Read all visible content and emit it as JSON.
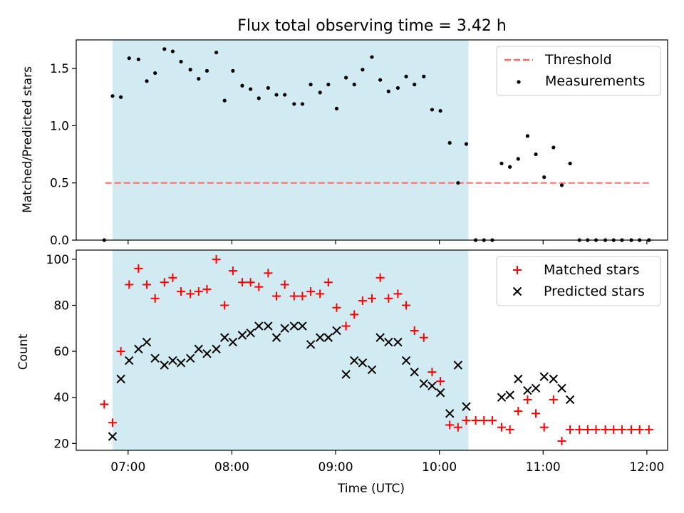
{
  "title": "Flux total observing time = 3.42 h",
  "colors": {
    "shade": "#add8e6",
    "threshold": "#ff6666",
    "matched": "#ff0000",
    "predicted": "#000000",
    "measure": "#000000"
  },
  "chart_data": [
    {
      "type": "scatter",
      "ylabel": "Matched/Predicted stars",
      "ylim": [
        0,
        1.75
      ],
      "yticks": [
        "0.0",
        "0.5",
        "1.0",
        "1.5"
      ],
      "xlim_hours": [
        6.5,
        12.2
      ],
      "shaded_interval_hours": [
        6.85,
        10.28
      ],
      "legend": [
        "Threshold",
        "Measurements"
      ],
      "legend_position": "top-right",
      "threshold": {
        "x": [
          6.78,
          12.02
        ],
        "y": 0.5
      },
      "series": [
        {
          "name": "Measurements",
          "x": [
            6.77,
            6.85,
            6.93,
            7.01,
            7.1,
            7.18,
            7.26,
            7.35,
            7.43,
            7.51,
            7.6,
            7.68,
            7.76,
            7.85,
            7.93,
            8.01,
            8.1,
            8.18,
            8.26,
            8.35,
            8.43,
            8.51,
            8.6,
            8.68,
            8.76,
            8.85,
            8.93,
            9.01,
            9.1,
            9.18,
            9.26,
            9.35,
            9.43,
            9.51,
            9.6,
            9.68,
            9.76,
            9.85,
            9.93,
            10.01,
            10.1,
            10.18,
            10.26,
            10.35,
            10.43,
            10.51,
            10.6,
            10.68,
            10.76,
            10.85,
            10.93,
            11.01,
            11.1,
            11.18,
            11.26,
            11.35,
            11.43,
            11.51,
            11.6,
            11.68,
            11.76,
            11.85,
            11.93,
            12.02
          ],
          "y": [
            0.0,
            1.26,
            1.25,
            1.59,
            1.58,
            1.39,
            1.46,
            1.67,
            1.65,
            1.56,
            1.49,
            1.41,
            1.48,
            1.64,
            1.22,
            1.48,
            1.35,
            1.32,
            1.24,
            1.33,
            1.27,
            1.27,
            1.19,
            1.19,
            1.36,
            1.29,
            1.36,
            1.15,
            1.42,
            1.36,
            1.49,
            1.6,
            1.4,
            1.3,
            1.33,
            1.43,
            1.36,
            1.43,
            1.14,
            1.13,
            0.85,
            0.5,
            0.84,
            0.0,
            0.0,
            0.0,
            0.67,
            0.64,
            0.71,
            0.91,
            0.75,
            0.55,
            0.81,
            0.48,
            0.67,
            0.0,
            0.0,
            0.0,
            0.0,
            0.0,
            0.0,
            0.0,
            0.0,
            0.0
          ]
        }
      ]
    },
    {
      "type": "scatter",
      "xlabel": "Time (UTC)",
      "ylabel": "Count",
      "ylim": [
        17,
        104
      ],
      "yticks": [
        "20",
        "40",
        "60",
        "80",
        "100"
      ],
      "xticks": [
        "07:00",
        "08:00",
        "09:00",
        "10:00",
        "11:00",
        "12:00"
      ],
      "xlim_hours": [
        6.5,
        12.2
      ],
      "shaded_interval_hours": [
        6.85,
        10.28
      ],
      "legend": [
        "Matched stars",
        "Predicted stars"
      ],
      "legend_position": "top-right",
      "series": [
        {
          "name": "Matched stars",
          "x": [
            6.77,
            6.85,
            6.93,
            7.01,
            7.1,
            7.18,
            7.26,
            7.35,
            7.43,
            7.51,
            7.6,
            7.68,
            7.76,
            7.85,
            7.93,
            8.01,
            8.1,
            8.18,
            8.26,
            8.35,
            8.43,
            8.51,
            8.6,
            8.68,
            8.76,
            8.85,
            8.93,
            9.01,
            9.1,
            9.18,
            9.26,
            9.35,
            9.43,
            9.51,
            9.6,
            9.68,
            9.76,
            9.85,
            9.93,
            10.01,
            10.1,
            10.18,
            10.26,
            10.35,
            10.43,
            10.51,
            10.6,
            10.68,
            10.76,
            10.85,
            10.93,
            11.01,
            11.1,
            11.18,
            11.26,
            11.35,
            11.43,
            11.51,
            11.6,
            11.68,
            11.76,
            11.85,
            11.93,
            12.02
          ],
          "y": [
            37,
            29,
            60,
            89,
            96,
            89,
            83,
            90,
            92,
            86,
            85,
            86,
            87,
            100,
            80,
            95,
            90,
            90,
            88,
            94,
            84,
            89,
            84,
            84,
            86,
            85,
            90,
            79,
            71,
            76,
            82,
            83,
            92,
            83,
            85,
            80,
            69,
            66,
            51,
            47,
            28,
            27,
            30,
            30,
            30,
            30,
            27,
            26,
            34,
            39,
            33,
            27,
            39,
            21,
            26,
            26,
            26,
            26,
            26,
            26,
            26,
            26,
            26,
            26
          ]
        },
        {
          "name": "Predicted stars",
          "x": [
            6.85,
            6.93,
            7.01,
            7.1,
            7.18,
            7.26,
            7.35,
            7.43,
            7.51,
            7.6,
            7.68,
            7.76,
            7.85,
            7.93,
            8.01,
            8.1,
            8.18,
            8.26,
            8.35,
            8.43,
            8.51,
            8.6,
            8.68,
            8.76,
            8.85,
            8.93,
            9.01,
            9.1,
            9.18,
            9.26,
            9.35,
            9.43,
            9.51,
            9.6,
            9.68,
            9.76,
            9.85,
            9.93,
            10.01,
            10.1,
            10.18,
            10.26,
            10.6,
            10.68,
            10.76,
            10.85,
            10.93,
            11.01,
            11.1,
            11.18,
            11.26
          ],
          "y": [
            23,
            48,
            56,
            61,
            64,
            57,
            54,
            56,
            55,
            57,
            61,
            59,
            61,
            66,
            64,
            67,
            68,
            71,
            71,
            66,
            70,
            71,
            71,
            63,
            66,
            66,
            69,
            50,
            56,
            55,
            52,
            66,
            64,
            64,
            56,
            51,
            46,
            45,
            42,
            33,
            54,
            36,
            40,
            41,
            48,
            43,
            44,
            49,
            48,
            44,
            39
          ]
        }
      ]
    }
  ]
}
